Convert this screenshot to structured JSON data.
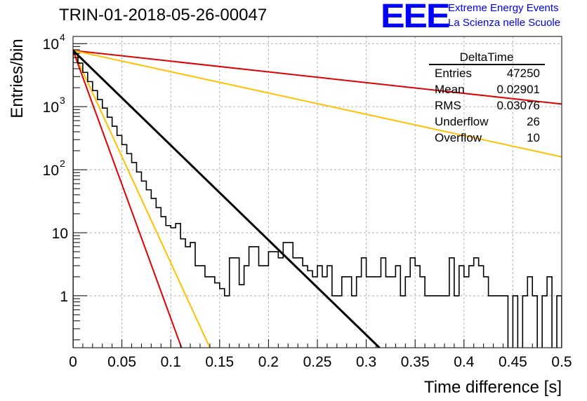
{
  "header": {
    "run_title": "TRIN-01-2018-05-26-00047",
    "logo_text": "EEE",
    "logo_line1": "Extreme Energy Events",
    "logo_line2": "La Scienza nelle Scuole"
  },
  "chart_data": {
    "type": "line",
    "xlabel": "Time difference [s]",
    "ylabel": "Entries/bin",
    "xlim": [
      0,
      0.5
    ],
    "ylim": [
      0.15,
      13000
    ],
    "y_log_scale": true,
    "grid": true,
    "x_ticks": [
      {
        "v": 0,
        "label": "0"
      },
      {
        "v": 0.05,
        "label": "0.05"
      },
      {
        "v": 0.1,
        "label": "0.1"
      },
      {
        "v": 0.15,
        "label": "0.15"
      },
      {
        "v": 0.2,
        "label": "0.2"
      },
      {
        "v": 0.25,
        "label": "0.25"
      },
      {
        "v": 0.3,
        "label": "0.3"
      },
      {
        "v": 0.35,
        "label": "0.35"
      },
      {
        "v": 0.4,
        "label": "0.4"
      },
      {
        "v": 0.45,
        "label": "0.45"
      },
      {
        "v": 0.5,
        "label": "0.5"
      }
    ],
    "y_ticks": [
      {
        "v": 1,
        "label": "1"
      },
      {
        "v": 10,
        "label": "10"
      },
      {
        "v": 100,
        "label": "10",
        "exp": "2"
      },
      {
        "v": 1000,
        "label": "10",
        "exp": "3"
      },
      {
        "v": 10000,
        "label": "10",
        "exp": "4"
      }
    ],
    "histogram": {
      "name": "DeltaTime",
      "color": "#000000",
      "bin_width": 0.005,
      "values": [
        6800,
        4900,
        3500,
        2500,
        1800,
        1300,
        950,
        680,
        490,
        350,
        250,
        180,
        130,
        92,
        66,
        48,
        35,
        25,
        18,
        13,
        12,
        14,
        8,
        6,
        7,
        3,
        3,
        2,
        2,
        1.6,
        1.3,
        1.0,
        4,
        4,
        1.5,
        3,
        6,
        6,
        3,
        3,
        5,
        5,
        4,
        7,
        7,
        4,
        4,
        3,
        2.5,
        2,
        3,
        2,
        3,
        1,
        1,
        2,
        2,
        1,
        2,
        4,
        2,
        2,
        2,
        4,
        2,
        2,
        3,
        1,
        2,
        4,
        3,
        2,
        1,
        1,
        1,
        1,
        1,
        4,
        1,
        3,
        2,
        3,
        4,
        3,
        2,
        1,
        1,
        1,
        1,
        0,
        1,
        0,
        1,
        2,
        1,
        0,
        1,
        2,
        0,
        1
      ]
    },
    "fit": {
      "color": "#000000",
      "points": [
        [
          0,
          7800
        ],
        [
          0.3135,
          0.15
        ]
      ]
    },
    "curves": [
      {
        "color": "#e00000",
        "points": [
          [
            0,
            7800
          ],
          [
            0.5,
            1100
          ]
        ]
      },
      {
        "color": "#ffc000",
        "points": [
          [
            0,
            7800
          ],
          [
            0.5,
            160
          ]
        ]
      },
      {
        "color": "#ffc000",
        "points": [
          [
            0,
            7800
          ],
          [
            0.14,
            0.15
          ]
        ]
      },
      {
        "color": "#e00000",
        "points": [
          [
            0,
            7800
          ],
          [
            0.111,
            0.15
          ]
        ]
      }
    ],
    "stats_box": {
      "title": "DeltaTime",
      "rows": [
        {
          "label": "Entries",
          "value": "47250"
        },
        {
          "label": "Mean",
          "value": "0.02901"
        },
        {
          "label": "RMS",
          "value": "0.03076"
        },
        {
          "label": "Underflow",
          "value": "26"
        },
        {
          "label": "Overflow",
          "value": "10"
        }
      ]
    }
  }
}
